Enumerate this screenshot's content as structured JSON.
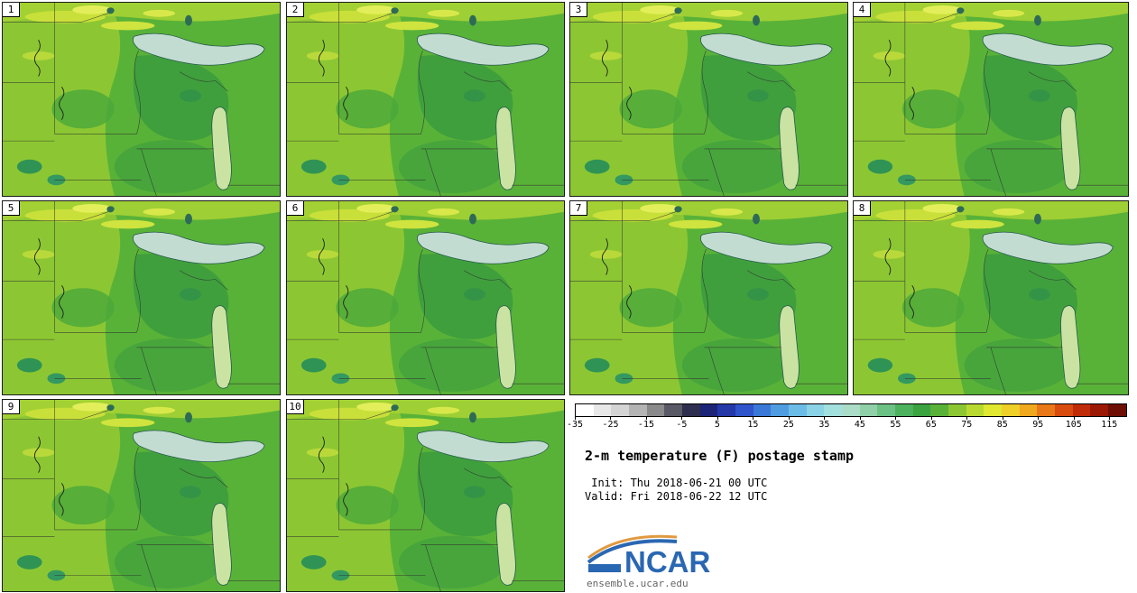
{
  "title": "2-m temperature (F) postage stamp",
  "init_line": " Init: Thu 2018-06-21 00 UTC",
  "valid_line": "Valid: Fri 2018-06-22 12 UTC",
  "footer": "ensemble.ucar.edu",
  "logo_text": "NCAR",
  "panels": [
    {
      "label": "1"
    },
    {
      "label": "2"
    },
    {
      "label": "3"
    },
    {
      "label": "4"
    },
    {
      "label": "5"
    },
    {
      "label": "6"
    },
    {
      "label": "7"
    },
    {
      "label": "8"
    },
    {
      "label": "9"
    },
    {
      "label": "10"
    }
  ],
  "colorbar": {
    "min": -35,
    "step": 5,
    "tick_labels": [
      "-35",
      "-25",
      "-15",
      "-5",
      "5",
      "15",
      "25",
      "35",
      "45",
      "55",
      "65",
      "75",
      "85",
      "95",
      "105",
      "115"
    ],
    "colors": [
      "#ffffff",
      "#e8e8e8",
      "#d4d4d4",
      "#b4b4b4",
      "#8a8a8a",
      "#5a5a66",
      "#2e2e4e",
      "#1c2478",
      "#2438a8",
      "#2f54cc",
      "#3a78d8",
      "#4f9ce0",
      "#6cbce8",
      "#8ad2e6",
      "#a2e0de",
      "#aadcc8",
      "#90d0a8",
      "#6cc184",
      "#4cb25e",
      "#3ca341",
      "#59b238",
      "#8cc733",
      "#b8da30",
      "#e0e832",
      "#eed028",
      "#f0a81e",
      "#e87818",
      "#d84c10",
      "#c02c08",
      "#9a1804",
      "#6e0e04"
    ]
  },
  "chart_data": {
    "type": "heatmap",
    "title": "2-m temperature (F) postage stamp",
    "variable": "2-m temperature",
    "units": "F",
    "init": "Thu 2018-06-21 00 UTC",
    "valid": "Fri 2018-06-22 12 UTC",
    "ensemble_members": [
      "1",
      "2",
      "3",
      "4",
      "5",
      "6",
      "7",
      "8",
      "9",
      "10"
    ],
    "colorbar_ticks": [
      -35,
      -25,
      -15,
      -5,
      5,
      15,
      25,
      35,
      45,
      55,
      65,
      75,
      85,
      95,
      105,
      115
    ],
    "colorbar_range": [
      -35,
      120
    ],
    "colorbar_interval": 5,
    "approx_values_shown": [
      40,
      80
    ],
    "legend_position": "bottom-right",
    "grid": "4 columns x 3 rows of member maps; last grid cell holds colorbar, title and credits"
  },
  "accent_colors": {
    "map_base_green": "#59b238",
    "lake_fill": "#c3dcd1",
    "logo_blue": "#2a67b2",
    "logo_orange": "#e09a40"
  }
}
